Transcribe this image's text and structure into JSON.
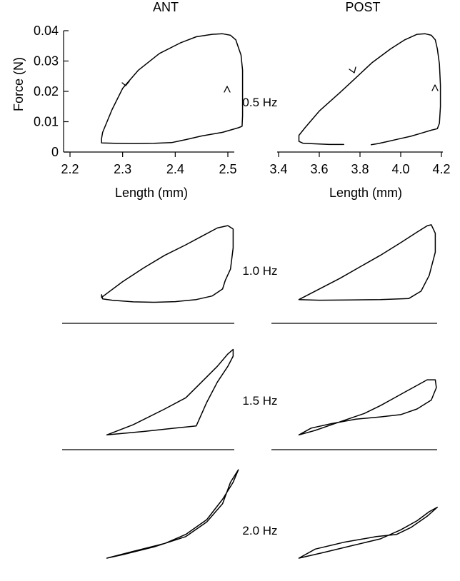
{
  "figure": {
    "panel_titles": [
      "ANT",
      "POST"
    ],
    "y_axis_label": "Force (N)",
    "x_axis_label_ant": "Length (mm)",
    "x_axis_label_post": "Length (mm)",
    "frequency_labels": [
      "0.5 Hz",
      "1.0 Hz",
      "1.5 Hz",
      "2.0 Hz"
    ]
  },
  "chart_data": [
    {
      "type": "line",
      "panel": "ANT",
      "frequency": "0.5 Hz",
      "xlabel": "Length (mm)",
      "ylabel": "Force (N)",
      "xlim": [
        2.2,
        2.55
      ],
      "ylim": [
        0,
        0.04
      ],
      "xticks": [
        "2.2",
        "2.3",
        "2.4",
        "2.5"
      ],
      "yticks": [
        "0",
        "0.01",
        "0.02",
        "0.03",
        "0.04"
      ],
      "grid": false,
      "series": [
        {
          "x": [
            2.393,
            2.36,
            2.32,
            2.285,
            2.26,
            2.26,
            2.262,
            2.28,
            2.3,
            2.33,
            2.37,
            2.41,
            2.44,
            2.47,
            2.49,
            2.505,
            2.515,
            2.52,
            2.525,
            2.528,
            2.528,
            2.528,
            2.527,
            2.52,
            2.49,
            2.45,
            2.42,
            2.393
          ],
          "y": [
            0.0031,
            0.0029,
            0.0028,
            0.0029,
            0.003,
            0.0045,
            0.0065,
            0.014,
            0.021,
            0.027,
            0.0325,
            0.036,
            0.038,
            0.0388,
            0.039,
            0.0385,
            0.037,
            0.0345,
            0.032,
            0.027,
            0.02,
            0.012,
            0.0085,
            0.008,
            0.0065,
            0.0053,
            0.0041,
            0.0031
          ]
        }
      ]
    },
    {
      "type": "line",
      "panel": "POST",
      "frequency": "0.5 Hz",
      "xlabel": "Length (mm)",
      "ylabel": "Force (N)",
      "xlim": [
        3.4,
        4.2
      ],
      "ylim": [
        0,
        0.04
      ],
      "xticks": [
        "3.4",
        "3.6",
        "3.8",
        "4.0",
        "4.2"
      ],
      "yticks": [],
      "grid": false,
      "series": [
        {
          "x": [
            3.72,
            3.65,
            3.58,
            3.52,
            3.5,
            3.5,
            3.53,
            3.6,
            3.7,
            3.78,
            3.86,
            3.95,
            4.02,
            4.08,
            4.12,
            4.15,
            4.17,
            4.18,
            4.19,
            4.195,
            4.195,
            4.19,
            4.18,
            4.15,
            4.1,
            4.05,
            3.99,
            3.93,
            3.89,
            3.855
          ],
          "y": [
            0.0025,
            0.0025,
            0.0027,
            0.0029,
            0.0035,
            0.0055,
            0.008,
            0.0135,
            0.0195,
            0.0245,
            0.0295,
            0.034,
            0.037,
            0.0388,
            0.039,
            0.0385,
            0.037,
            0.034,
            0.029,
            0.022,
            0.015,
            0.0095,
            0.0077,
            0.0072,
            0.0062,
            0.0052,
            0.0043,
            0.0034,
            0.0028,
            0.0024
          ]
        }
      ]
    },
    {
      "type": "line",
      "panel": "ANT",
      "frequency": "1.0 Hz",
      "xlim": [
        2.2,
        2.55
      ],
      "ylim": [
        0,
        0.04
      ],
      "series": [
        {
          "x": [
            2.26,
            2.3,
            2.34,
            2.38,
            2.42,
            2.45,
            2.48,
            2.5,
            2.51,
            2.51,
            2.505,
            2.495,
            2.49,
            2.47,
            2.44,
            2.4,
            2.36,
            2.32,
            2.28,
            2.262,
            2.26,
            2.26
          ],
          "y": [
            0.0045,
            0.012,
            0.0185,
            0.0245,
            0.0295,
            0.0335,
            0.0375,
            0.0386,
            0.037,
            0.028,
            0.018,
            0.0125,
            0.0085,
            0.0052,
            0.0035,
            0.0025,
            0.0022,
            0.0024,
            0.0032,
            0.0038,
            0.0058,
            0.0045
          ]
        }
      ]
    },
    {
      "type": "line",
      "panel": "POST",
      "frequency": "1.0 Hz",
      "xlim": [
        3.4,
        4.2
      ],
      "ylim": [
        0,
        0.04
      ],
      "series": [
        {
          "x": [
            3.5,
            3.6,
            3.7,
            3.8,
            3.9,
            4.0,
            4.08,
            4.13,
            4.15,
            4.17,
            4.17,
            4.14,
            4.1,
            4.04,
            3.9,
            3.75,
            3.6,
            3.5
          ],
          "y": [
            0.0035,
            0.0085,
            0.0135,
            0.019,
            0.0245,
            0.0305,
            0.0355,
            0.0385,
            0.039,
            0.035,
            0.026,
            0.015,
            0.0075,
            0.004,
            0.0035,
            0.0033,
            0.0032,
            0.0035
          ]
        }
      ]
    },
    {
      "type": "line",
      "panel": "ANT",
      "frequency": "1.5 Hz",
      "xlim": [
        2.2,
        2.55
      ],
      "ylim": [
        0,
        0.04
      ],
      "series": [
        {
          "x": [
            2.27,
            2.32,
            2.38,
            2.42,
            2.45,
            2.48,
            2.5,
            2.51,
            2.51,
            2.5,
            2.48,
            2.46,
            2.44,
            2.4,
            2.34,
            2.27
          ],
          "y": [
            0.0015,
            0.006,
            0.013,
            0.018,
            0.025,
            0.032,
            0.0375,
            0.0395,
            0.0365,
            0.032,
            0.025,
            0.016,
            0.0055,
            0.0045,
            0.003,
            0.0015
          ]
        }
      ]
    },
    {
      "type": "line",
      "panel": "POST",
      "frequency": "1.5 Hz",
      "xlim": [
        3.4,
        4.2
      ],
      "ylim": [
        0,
        0.04
      ],
      "series": [
        {
          "x": [
            3.5,
            3.58,
            3.66,
            3.74,
            3.82,
            3.9,
            3.96,
            4.02,
            4.08,
            4.13,
            4.17,
            4.175,
            4.15,
            4.08,
            4.0,
            3.9,
            3.78,
            3.66,
            3.56,
            3.5
          ],
          "y": [
            0.0015,
            0.0035,
            0.006,
            0.0085,
            0.011,
            0.0145,
            0.0175,
            0.0205,
            0.0235,
            0.026,
            0.026,
            0.0225,
            0.017,
            0.013,
            0.0105,
            0.0095,
            0.0085,
            0.0065,
            0.0045,
            0.0015
          ]
        }
      ]
    },
    {
      "type": "line",
      "panel": "ANT",
      "frequency": "2.0 Hz",
      "xlim": [
        2.2,
        2.55
      ],
      "ylim": [
        0,
        0.04
      ],
      "series": [
        {
          "x": [
            2.27,
            2.32,
            2.38,
            2.42,
            2.46,
            2.49,
            2.51,
            2.52,
            2.505,
            2.49,
            2.46,
            2.42,
            2.36,
            2.3,
            2.27
          ],
          "y": [
            0.0,
            0.003,
            0.0065,
            0.0105,
            0.017,
            0.026,
            0.0335,
            0.039,
            0.0335,
            0.024,
            0.016,
            0.0095,
            0.005,
            0.0015,
            0.0
          ]
        }
      ]
    },
    {
      "type": "line",
      "panel": "POST",
      "frequency": "2.0 Hz",
      "xlim": [
        3.4,
        4.2
      ],
      "ylim": [
        0,
        0.04
      ],
      "series": [
        {
          "x": [
            3.5,
            3.62,
            3.76,
            3.9,
            4.0,
            4.08,
            4.14,
            4.18,
            4.13,
            4.05,
            3.98,
            3.88,
            3.72,
            3.58,
            3.5
          ],
          "y": [
            0.0,
            0.0025,
            0.0055,
            0.0085,
            0.0125,
            0.0165,
            0.0205,
            0.0225,
            0.0185,
            0.0135,
            0.0105,
            0.0095,
            0.007,
            0.004,
            0.0
          ]
        }
      ]
    }
  ]
}
